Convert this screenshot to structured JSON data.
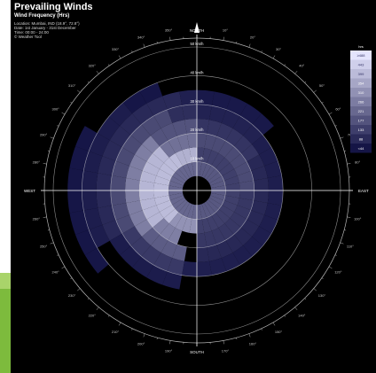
{
  "header": {
    "title": "Prevailing Winds",
    "subtitle": "Wind Frequency (Hrs)",
    "location": "Location: Mumbai, IND (18.9°, 72.8°)",
    "date": "Date: 1st January - 31st December",
    "time": "Time: 00:00 - 24:00",
    "weather": "© Weather Tool"
  },
  "colors": {
    "background": "#000000",
    "grid": "#ffffff",
    "low": "#0c0c3e",
    "high": "#e6e6ff"
  },
  "chart_data": {
    "type": "heatmap",
    "subtype": "polar wind rose",
    "title": "Prevailing Winds",
    "subtitle": "Wind Frequency (Hrs)",
    "compass_labels": [
      "NORTH",
      "EAST",
      "SOUTH",
      "WEST"
    ],
    "ring_labels": [
      "10 km/h",
      "20 km/h",
      "30 km/h",
      "40 km/h",
      "50 km/h"
    ],
    "ring_values": [
      10,
      20,
      30,
      40,
      50
    ],
    "angle_labels": [
      "10°",
      "20°",
      "30°",
      "40°",
      "50°",
      "60°",
      "70°",
      "80°",
      "100°",
      "110°",
      "120°",
      "130°",
      "140°",
      "150°",
      "160°",
      "170°",
      "190°",
      "200°",
      "210°",
      "220°",
      "230°",
      "240°",
      "250°",
      "260°",
      "280°",
      "290°",
      "300°",
      "310°",
      "320°",
      "330°",
      "340°",
      "350°"
    ],
    "legend": {
      "title": "hrs",
      "ticks": [
        "≥488",
        "443",
        "399",
        "354",
        "310",
        "266",
        "221",
        "177",
        "133",
        "88",
        "<44"
      ],
      "placement": "top-right"
    },
    "direction_step_deg": 10,
    "speed_step_kmh": 5,
    "cells": [
      {
        "dir_start": 180,
        "dir_end": 360,
        "speed_start": 5,
        "speed_end": 10,
        "value": 230
      },
      {
        "dir_start": 0,
        "dir_end": 180,
        "speed_start": 5,
        "speed_end": 10,
        "value": 160
      },
      {
        "dir_start": 220,
        "dir_end": 330,
        "speed_start": 10,
        "speed_end": 15,
        "value": 420
      },
      {
        "dir_start": 330,
        "dir_end": 360,
        "speed_start": 10,
        "speed_end": 15,
        "value": 330
      },
      {
        "dir_start": 180,
        "dir_end": 220,
        "speed_start": 10,
        "speed_end": 15,
        "value": 300
      },
      {
        "dir_start": 0,
        "dir_end": 180,
        "speed_start": 10,
        "speed_end": 15,
        "value": 130
      },
      {
        "dir_start": 230,
        "dir_end": 320,
        "speed_start": 15,
        "speed_end": 20,
        "value": 360
      },
      {
        "dir_start": 320,
        "dir_end": 360,
        "speed_start": 15,
        "speed_end": 20,
        "value": 240
      },
      {
        "dir_start": 200,
        "dir_end": 230,
        "speed_start": 15,
        "speed_end": 20,
        "value": 230
      },
      {
        "dir_start": 0,
        "dir_end": 90,
        "speed_start": 15,
        "speed_end": 20,
        "value": 140
      },
      {
        "dir_start": 90,
        "dir_end": 180,
        "speed_start": 15,
        "speed_end": 20,
        "value": 110
      },
      {
        "dir_start": 230,
        "dir_end": 320,
        "speed_start": 20,
        "speed_end": 25,
        "value": 240
      },
      {
        "dir_start": 320,
        "dir_end": 360,
        "speed_start": 20,
        "speed_end": 25,
        "value": 170
      },
      {
        "dir_start": 190,
        "dir_end": 230,
        "speed_start": 20,
        "speed_end": 25,
        "value": 160
      },
      {
        "dir_start": 0,
        "dir_end": 60,
        "speed_start": 20,
        "speed_end": 25,
        "value": 90
      },
      {
        "dir_start": 60,
        "dir_end": 180,
        "speed_start": 20,
        "speed_end": 25,
        "value": 70
      },
      {
        "dir_start": 240,
        "dir_end": 340,
        "speed_start": 25,
        "speed_end": 30,
        "value": 130
      },
      {
        "dir_start": 340,
        "dir_end": 360,
        "speed_start": 25,
        "speed_end": 30,
        "value": 80
      },
      {
        "dir_start": 190,
        "dir_end": 240,
        "speed_start": 25,
        "speed_end": 30,
        "value": 90
      },
      {
        "dir_start": 0,
        "dir_end": 50,
        "speed_start": 25,
        "speed_end": 30,
        "value": 50
      },
      {
        "dir_start": 50,
        "dir_end": 150,
        "speed_start": 25,
        "speed_end": 30,
        "value": 45
      },
      {
        "dir_start": 150,
        "dir_end": 190,
        "speed_start": 25,
        "speed_end": 30,
        "value": 40
      },
      {
        "dir_start": 240,
        "dir_end": 350,
        "speed_start": 30,
        "speed_end": 35,
        "value": 70
      },
      {
        "dir_start": 350,
        "dir_end": 360,
        "speed_start": 30,
        "speed_end": 35,
        "value": 40
      },
      {
        "dir_start": 0,
        "dir_end": 50,
        "speed_start": 30,
        "speed_end": 35,
        "value": 30
      },
      {
        "dir_start": 190,
        "dir_end": 240,
        "speed_start": 30,
        "speed_end": 35,
        "value": 40
      },
      {
        "dir_start": 240,
        "dir_end": 320,
        "speed_start": 35,
        "speed_end": 40,
        "value": 35
      },
      {
        "dir_start": 320,
        "dir_end": 340,
        "speed_start": 35,
        "speed_end": 40,
        "value": 25
      },
      {
        "dir_start": 230,
        "dir_end": 300,
        "speed_start": 40,
        "speed_end": 45,
        "value": 20
      }
    ],
    "center_calm_radius_kmh": 3
  }
}
